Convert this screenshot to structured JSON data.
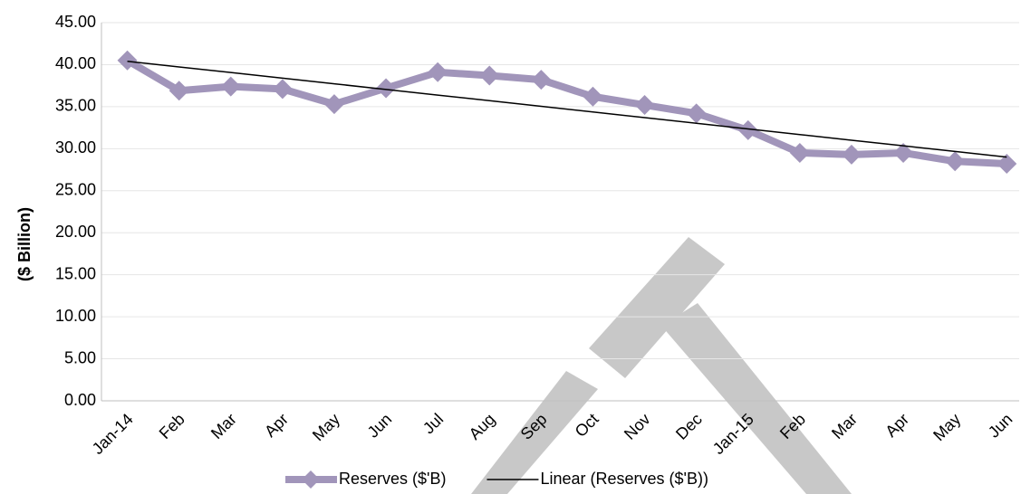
{
  "chart_data": {
    "type": "line",
    "y_label": "($ Billion)",
    "categories": [
      "Jan-14",
      "Feb",
      "Mar",
      "Apr",
      "May",
      "Jun",
      "Jul",
      "Aug",
      "Sep",
      "Oct",
      "Nov",
      "Dec",
      "Jan-15",
      "Feb",
      "Mar",
      "Apr",
      "May",
      "Jun"
    ],
    "series": [
      {
        "name": "Reserves ($'B)",
        "color": "#a195ba",
        "marker": "diamond",
        "values": [
          40.5,
          36.9,
          37.4,
          37.1,
          35.3,
          37.2,
          39.1,
          38.7,
          38.2,
          36.2,
          35.2,
          34.2,
          32.2,
          29.5,
          29.3,
          29.5,
          28.5,
          28.2
        ]
      },
      {
        "name": "Linear (Reserves ($'B))",
        "color": "#000000",
        "marker": "none",
        "values": [
          40.4,
          39.73,
          39.06,
          38.39,
          37.72,
          37.05,
          36.38,
          35.71,
          35.04,
          34.37,
          33.69,
          33.02,
          32.35,
          31.68,
          31.01,
          30.34,
          29.67,
          29.0
        ]
      }
    ],
    "ylim": [
      0,
      45
    ],
    "yticks": [
      {
        "value": 0,
        "label": "0.00"
      },
      {
        "value": 5,
        "label": "5.00"
      },
      {
        "value": 10,
        "label": "10.00"
      },
      {
        "value": 15,
        "label": "15.00"
      },
      {
        "value": 20,
        "label": "20.00"
      },
      {
        "value": 25,
        "label": "25.00"
      },
      {
        "value": 30,
        "label": "30.00"
      },
      {
        "value": 35,
        "label": "35.00"
      },
      {
        "value": 40,
        "label": "40.00"
      },
      {
        "value": 45,
        "label": "45.00"
      }
    ],
    "grid": true,
    "legend": "bottom"
  }
}
